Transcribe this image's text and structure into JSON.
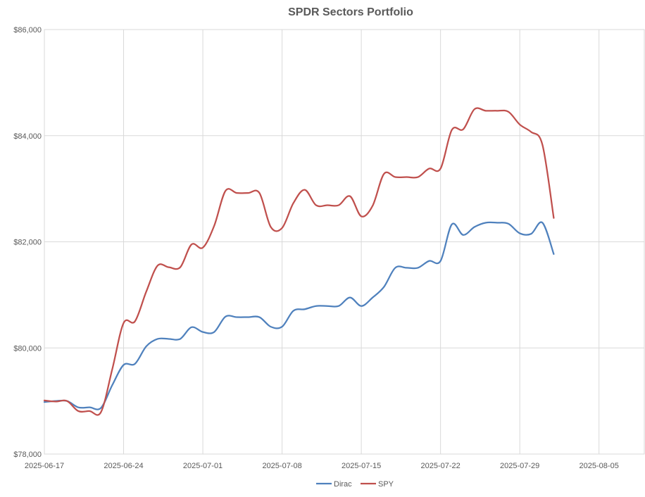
{
  "chart_data": {
    "type": "line",
    "title": "SPDR Sectors Portfolio",
    "xlabel": "",
    "ylabel": "",
    "x_ticks": [
      "2025-06-17",
      "2025-06-24",
      "2025-07-01",
      "2025-07-08",
      "2025-07-15",
      "2025-07-22",
      "2025-07-29",
      "2025-08-05"
    ],
    "xlim": [
      "2025-06-17",
      "2025-08-09"
    ],
    "y_ticks": [
      "$78,000",
      "$80,000",
      "$82,000",
      "$84,000",
      "$86,000"
    ],
    "ylim": [
      78000,
      86000
    ],
    "grid": true,
    "legend_position": "bottom",
    "colors": {
      "Dirac": "#4f81bd",
      "SPY": "#c0504d",
      "grid": "#d9d9d9"
    },
    "series": [
      {
        "name": "Dirac",
        "x": [
          "2025-06-17",
          "2025-06-18",
          "2025-06-19",
          "2025-06-20",
          "2025-06-21",
          "2025-06-22",
          "2025-06-23",
          "2025-06-24",
          "2025-06-25",
          "2025-06-26",
          "2025-06-27",
          "2025-06-28",
          "2025-06-29",
          "2025-06-30",
          "2025-07-01",
          "2025-07-02",
          "2025-07-03",
          "2025-07-04",
          "2025-07-05",
          "2025-07-06",
          "2025-07-07",
          "2025-07-08",
          "2025-07-09",
          "2025-07-10",
          "2025-07-11",
          "2025-07-12",
          "2025-07-13",
          "2025-07-14",
          "2025-07-15",
          "2025-07-16",
          "2025-07-17",
          "2025-07-18",
          "2025-07-19",
          "2025-07-20",
          "2025-07-21",
          "2025-07-22",
          "2025-07-23",
          "2025-07-24",
          "2025-07-25",
          "2025-07-26",
          "2025-07-27",
          "2025-07-28",
          "2025-07-29",
          "2025-07-30",
          "2025-07-31",
          "2025-08-01"
        ],
        "values": [
          78980,
          79000,
          79000,
          78880,
          78880,
          78870,
          79300,
          79680,
          79700,
          80030,
          80170,
          80170,
          80170,
          80390,
          80300,
          80300,
          80590,
          80580,
          80580,
          80580,
          80400,
          80400,
          80700,
          80730,
          80790,
          80790,
          80790,
          80950,
          80790,
          80950,
          81150,
          81510,
          81510,
          81510,
          81640,
          81640,
          82330,
          82130,
          82280,
          82360,
          82360,
          82340,
          82160,
          82150,
          82360,
          81770
        ]
      },
      {
        "name": "SPY",
        "x": [
          "2025-06-17",
          "2025-06-18",
          "2025-06-19",
          "2025-06-20",
          "2025-06-21",
          "2025-06-22",
          "2025-06-23",
          "2025-06-24",
          "2025-06-25",
          "2025-06-26",
          "2025-06-27",
          "2025-06-28",
          "2025-06-29",
          "2025-06-30",
          "2025-07-01",
          "2025-07-02",
          "2025-07-03",
          "2025-07-04",
          "2025-07-05",
          "2025-07-06",
          "2025-07-07",
          "2025-07-08",
          "2025-07-09",
          "2025-07-10",
          "2025-07-11",
          "2025-07-12",
          "2025-07-13",
          "2025-07-14",
          "2025-07-15",
          "2025-07-16",
          "2025-07-17",
          "2025-07-18",
          "2025-07-19",
          "2025-07-20",
          "2025-07-21",
          "2025-07-22",
          "2025-07-23",
          "2025-07-24",
          "2025-07-25",
          "2025-07-26",
          "2025-07-27",
          "2025-07-28",
          "2025-07-29",
          "2025-07-30",
          "2025-07-31",
          "2025-08-01"
        ],
        "values": [
          79010,
          78990,
          79000,
          78810,
          78810,
          78790,
          79600,
          80470,
          80500,
          81060,
          81550,
          81520,
          81520,
          81950,
          81890,
          82300,
          82960,
          82920,
          82920,
          82920,
          82280,
          82260,
          82730,
          82980,
          82690,
          82690,
          82690,
          82860,
          82480,
          82680,
          83280,
          83220,
          83220,
          83220,
          83380,
          83380,
          84110,
          84120,
          84500,
          84470,
          84470,
          84450,
          84210,
          84070,
          83830,
          82450
        ]
      }
    ]
  }
}
